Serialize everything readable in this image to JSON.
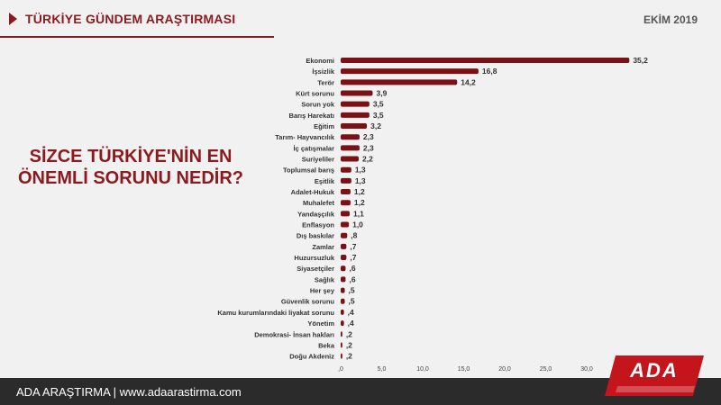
{
  "header": {
    "title": "TÜRKİYE GÜNDEM ARAŞTIRMASI",
    "date": "EKİM 2019"
  },
  "question": "SİZCE TÜRKİYE'NİN EN ÖNEMLİ SORUNU NEDİR?",
  "footer": {
    "text": "ADA ARAŞTIRMA |   www.adaarastirma.com",
    "logo_text": "ADA"
  },
  "colors": {
    "accent": "#8b1a1f",
    "bar": "#7a1114",
    "footer_bg": "#2b2b2b"
  },
  "chart_data": {
    "type": "bar",
    "orientation": "horizontal",
    "categories": [
      "Ekonomi",
      "İşsizlik",
      "Terör",
      "Kürt sorunu",
      "Sorun yok",
      "Barış Harekatı",
      "Eğitim",
      "Tarım- Hayvancılık",
      "İç çatışmalar",
      "Suriyeliler",
      "Toplumsal barış",
      "Eşitlik",
      "Adalet-Hukuk",
      "Muhalefet",
      "Yandaşçılık",
      "Enflasyon",
      "Dış baskılar",
      "Zamlar",
      "Huzursuzluk",
      "Siyasetçiler",
      "Sağlık",
      "Her şey",
      "Güvenlik sorunu",
      "Kamu kurumlarındaki liyakat sorunu",
      "Yönetim",
      "Demokrasi- İnsan hakları",
      "Beka",
      "Doğu Akdeniz"
    ],
    "values": [
      35.2,
      16.8,
      14.2,
      3.9,
      3.5,
      3.5,
      3.2,
      2.3,
      2.3,
      2.2,
      1.3,
      1.3,
      1.2,
      1.2,
      1.1,
      1.0,
      0.8,
      0.7,
      0.7,
      0.6,
      0.6,
      0.5,
      0.5,
      0.4,
      0.4,
      0.2,
      0.2,
      0.2
    ],
    "value_labels": [
      "35,2",
      "16,8",
      "14,2",
      "3,9",
      "3,5",
      "3,5",
      "3,2",
      "2,3",
      "2,3",
      "2,2",
      "1,3",
      "1,3",
      "1,2",
      "1,2",
      "1,1",
      "1,0",
      ",8",
      ",7",
      ",7",
      ",6",
      ",6",
      ",5",
      ",5",
      ",4",
      ",4",
      ",2",
      ",2",
      ",2"
    ],
    "xlim": [
      0,
      35
    ],
    "xticks": [
      0,
      5,
      10,
      15,
      20,
      25,
      30
    ],
    "xtick_labels": [
      ",0",
      "5,0",
      "10,0",
      "15,0",
      "20,0",
      "25,0",
      "30,0"
    ],
    "grid": false,
    "legend": "none"
  }
}
